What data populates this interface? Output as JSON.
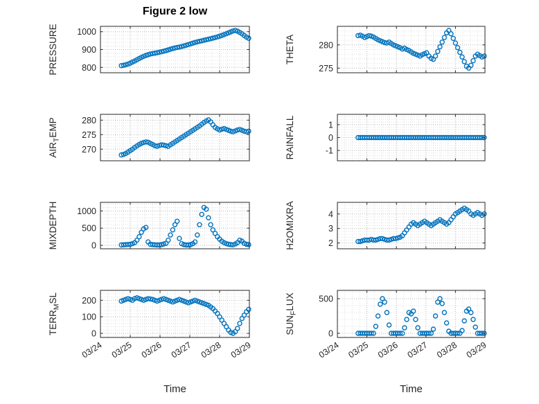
{
  "figure": {
    "title": "Figure 2 low",
    "xlabel": "Time"
  },
  "style": {
    "marker_color": "#0072BD",
    "axis_color": "#262626",
    "grid_color": "#b3b3b3",
    "minor_grid_color": "#dfdfdf",
    "tick_label_color": "#262626"
  },
  "x_axis": {
    "min": 24,
    "max": 29,
    "tick_values": [
      24,
      25,
      26,
      27,
      28,
      29
    ],
    "tick_labels": [
      "03/24",
      "03/25",
      "03/26",
      "03/27",
      "03/28",
      "03/29"
    ]
  },
  "time_base": {
    "start": 24.7,
    "step": 0.075,
    "count": 58
  },
  "chart_data": [
    {
      "id": "pressure",
      "type": "scatter",
      "ylabel": {
        "pre": "PRESSURE",
        "sub": "",
        "post": ""
      },
      "ylim": [
        770,
        1030
      ],
      "ytick_values": [
        800,
        900,
        1000
      ],
      "ytick_labels": [
        "800",
        "900",
        "1000"
      ],
      "values": [
        810,
        812,
        815,
        819,
        824,
        830,
        836,
        843,
        850,
        856,
        862,
        867,
        871,
        875,
        878,
        880,
        882,
        885,
        888,
        891,
        894,
        898,
        902,
        906,
        909,
        912,
        914,
        917,
        920,
        924,
        928,
        932,
        936,
        940,
        943,
        946,
        949,
        952,
        955,
        958,
        961,
        964,
        967,
        971,
        975,
        979,
        984,
        989,
        994,
        999,
        1004,
        1007,
        1003,
        996,
        988,
        979,
        970,
        963
      ]
    },
    {
      "id": "theta",
      "type": "scatter",
      "ylabel": {
        "pre": "THETA",
        "sub": "",
        "post": ""
      },
      "ylim": [
        274,
        284
      ],
      "ytick_values": [
        275,
        280
      ],
      "ytick_labels": [
        "275",
        "280"
      ],
      "values": [
        282.0,
        282.1,
        281.9,
        281.6,
        281.8,
        282.0,
        281.9,
        281.7,
        281.4,
        281.1,
        280.9,
        280.7,
        280.5,
        280.4,
        280.6,
        280.3,
        280.0,
        279.8,
        279.6,
        279.4,
        279.1,
        279.3,
        279.0,
        278.8,
        278.5,
        278.2,
        278.0,
        277.8,
        277.6,
        277.9,
        278.1,
        278.3,
        277.6,
        277.1,
        276.9,
        277.6,
        278.6,
        279.6,
        280.6,
        281.6,
        282.6,
        283.1,
        282.4,
        281.4,
        280.4,
        279.4,
        278.4,
        277.4,
        276.4,
        275.4,
        275.0,
        275.6,
        276.6,
        277.6,
        278.0,
        277.7,
        277.4,
        277.6
      ]
    },
    {
      "id": "air_temp",
      "type": "scatter",
      "ylabel": {
        "pre": "AIR",
        "sub": "T",
        "post": "EMP"
      },
      "ylim": [
        266,
        282
      ],
      "ytick_values": [
        270,
        275,
        280
      ],
      "ytick_labels": [
        "270",
        "275",
        "280"
      ],
      "values": [
        268.0,
        268.2,
        268.5,
        269.0,
        269.5,
        270.0,
        270.6,
        271.1,
        271.6,
        272.0,
        272.3,
        272.5,
        272.4,
        272.0,
        271.6,
        271.2,
        271.0,
        271.3,
        271.5,
        271.4,
        271.2,
        271.0,
        271.5,
        272.0,
        272.5,
        273.0,
        273.5,
        274.0,
        274.5,
        275.0,
        275.5,
        276.0,
        276.5,
        277.0,
        277.5,
        278.0,
        278.6,
        279.2,
        279.7,
        280.1,
        279.4,
        278.4,
        277.5,
        277.0,
        276.6,
        276.9,
        277.1,
        276.8,
        276.5,
        276.2,
        276.0,
        276.3,
        276.6,
        276.8,
        276.5,
        276.2,
        276.0,
        276.2
      ]
    },
    {
      "id": "rainfall",
      "type": "scatter",
      "ylabel": {
        "pre": "RAINFALL",
        "sub": "",
        "post": ""
      },
      "ylim": [
        -1.8,
        1.8
      ],
      "ytick_values": [
        -1,
        0,
        1
      ],
      "ytick_labels": [
        "-1",
        "0",
        "1"
      ],
      "values": [
        0,
        0,
        0,
        0,
        0,
        0,
        0,
        0,
        0,
        0,
        0,
        0,
        0,
        0,
        0,
        0,
        0,
        0,
        0,
        0,
        0,
        0,
        0,
        0,
        0,
        0,
        0,
        0,
        0,
        0,
        0,
        0,
        0,
        0,
        0,
        0,
        0,
        0,
        0,
        0,
        0,
        0,
        0,
        0,
        0,
        0,
        0,
        0,
        0,
        0,
        0,
        0,
        0,
        0,
        0,
        0,
        0,
        0
      ]
    },
    {
      "id": "mixdepth",
      "type": "scatter",
      "ylabel": {
        "pre": "MIXDEPTH",
        "sub": "",
        "post": ""
      },
      "ylim": [
        -100,
        1250
      ],
      "ytick_values": [
        0,
        500,
        1000
      ],
      "ytick_labels": [
        "0",
        "500",
        "1000"
      ],
      "values": [
        10,
        15,
        20,
        25,
        30,
        50,
        80,
        150,
        250,
        380,
        480,
        520,
        100,
        30,
        20,
        15,
        10,
        10,
        20,
        40,
        60,
        150,
        300,
        450,
        600,
        700,
        200,
        50,
        20,
        10,
        10,
        20,
        50,
        100,
        300,
        600,
        900,
        1100,
        1050,
        800,
        600,
        450,
        350,
        250,
        180,
        120,
        80,
        50,
        30,
        20,
        15,
        40,
        80,
        150,
        120,
        60,
        30,
        20
      ]
    },
    {
      "id": "h2omixra",
      "type": "scatter",
      "ylabel": {
        "pre": "H2OMIXRA",
        "sub": "",
        "post": ""
      },
      "ylim": [
        1.6,
        4.8
      ],
      "ytick_values": [
        2,
        3,
        4
      ],
      "ytick_labels": [
        "2",
        "3",
        "4"
      ],
      "values": [
        2.1,
        2.1,
        2.15,
        2.2,
        2.2,
        2.2,
        2.25,
        2.2,
        2.2,
        2.25,
        2.3,
        2.3,
        2.25,
        2.2,
        2.2,
        2.25,
        2.3,
        2.3,
        2.35,
        2.4,
        2.5,
        2.7,
        2.9,
        3.1,
        3.3,
        3.4,
        3.3,
        3.2,
        3.3,
        3.4,
        3.5,
        3.4,
        3.3,
        3.2,
        3.3,
        3.4,
        3.5,
        3.6,
        3.5,
        3.4,
        3.3,
        3.4,
        3.6,
        3.8,
        4.0,
        4.1,
        4.2,
        4.3,
        4.4,
        4.3,
        4.2,
        4.0,
        3.9,
        4.0,
        4.1,
        4.0,
        3.9,
        4.0
      ]
    },
    {
      "id": "terr_msl",
      "type": "scatter",
      "ylabel": {
        "pre": "TERR",
        "sub": "M",
        "post": "SL"
      },
      "ylim": [
        -25,
        260
      ],
      "ytick_values": [
        0,
        100,
        200
      ],
      "ytick_labels": [
        "0",
        "100",
        "200"
      ],
      "values": [
        195,
        200,
        205,
        210,
        205,
        200,
        210,
        215,
        210,
        205,
        200,
        205,
        210,
        208,
        205,
        200,
        195,
        200,
        205,
        210,
        205,
        200,
        195,
        190,
        195,
        200,
        205,
        200,
        195,
        190,
        185,
        190,
        195,
        200,
        195,
        190,
        185,
        180,
        175,
        170,
        160,
        150,
        135,
        120,
        100,
        80,
        60,
        40,
        20,
        5,
        0,
        10,
        30,
        60,
        90,
        110,
        130,
        145
      ]
    },
    {
      "id": "sun_flux",
      "type": "scatter",
      "ylabel": {
        "pre": "SUN",
        "sub": "F",
        "post": "LUX"
      },
      "ylim": [
        -60,
        620
      ],
      "ytick_values": [
        0,
        500
      ],
      "ytick_labels": [
        "0",
        "500"
      ],
      "values": [
        0,
        0,
        0,
        0,
        0,
        0,
        0,
        0,
        100,
        250,
        420,
        500,
        450,
        300,
        120,
        0,
        0,
        0,
        0,
        0,
        0,
        80,
        200,
        300,
        280,
        320,
        200,
        80,
        0,
        0,
        0,
        0,
        0,
        0,
        60,
        250,
        450,
        500,
        430,
        300,
        150,
        30,
        0,
        0,
        0,
        0,
        0,
        40,
        180,
        320,
        350,
        300,
        200,
        90,
        0,
        0,
        0,
        0
      ]
    }
  ]
}
